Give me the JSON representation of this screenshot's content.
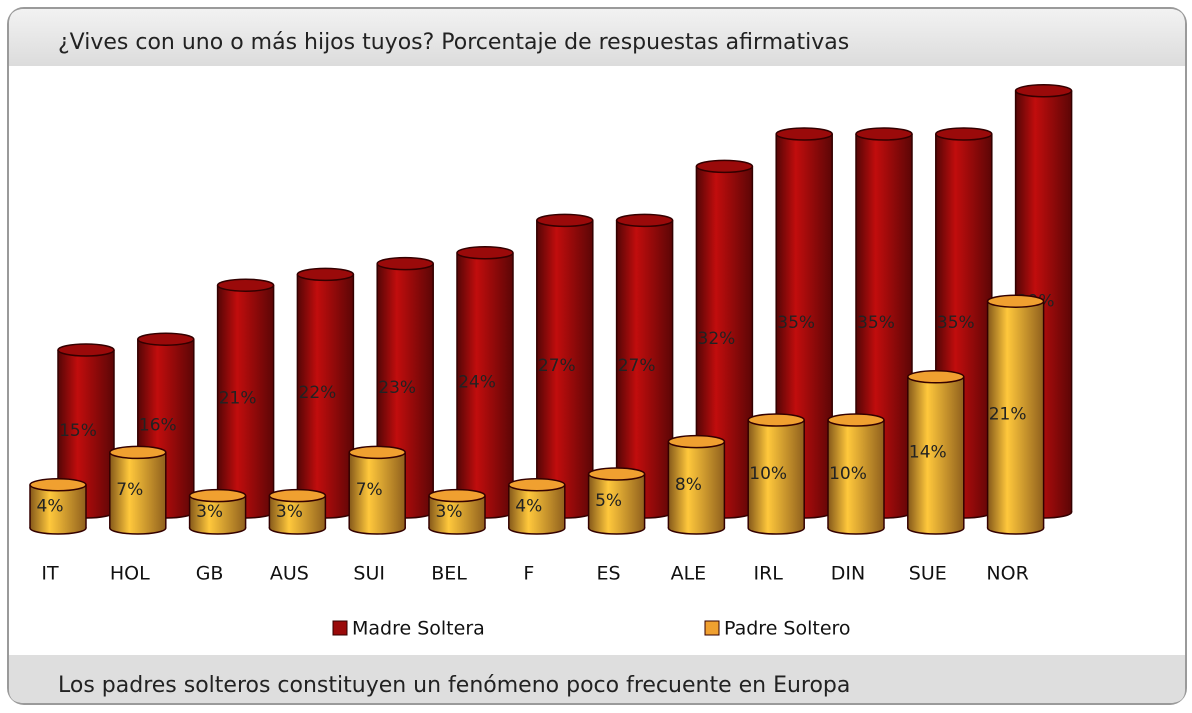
{
  "chart_data": {
    "type": "bar",
    "title": "¿Vives con uno o más hijos tuyos? Porcentaje de respuestas afirmativas",
    "caption": "Los padres solteros constituyen un fenómeno poco frecuente en Europa",
    "categories": [
      "IT",
      "HOL",
      "GB",
      "AUS",
      "SUI",
      "BEL",
      "F",
      "ES",
      "ALE",
      "IRL",
      "DIN",
      "SUE",
      "NOR"
    ],
    "series": [
      {
        "name": "Madre Soltera",
        "color": "#9a0a0a",
        "values": [
          15,
          16,
          21,
          22,
          23,
          24,
          27,
          27,
          32,
          35,
          35,
          35,
          39
        ],
        "value_labels": [
          "15%",
          "16%",
          "21%",
          "22%",
          "23%",
          "24%",
          "27%",
          "27%",
          "32%",
          "35%",
          "35%",
          "35%",
          "39%"
        ]
      },
      {
        "name": "Padre Soltero",
        "color": "#f0a030",
        "values": [
          4,
          7,
          3,
          3,
          7,
          3,
          4,
          5,
          8,
          10,
          10,
          14,
          21
        ],
        "value_labels": [
          "4%",
          "7%",
          "3%",
          "3%",
          "7%",
          "3%",
          "4%",
          "5%",
          "8%",
          "10%",
          "10%",
          "14%",
          "21%"
        ]
      }
    ]
  }
}
